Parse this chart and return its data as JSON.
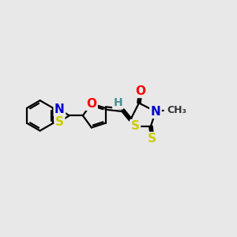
{
  "background_color": "#e8e8e8",
  "atom_colors": {
    "C": "#000000",
    "N": "#0000cc",
    "O": "#ff0000",
    "S": "#cccc00",
    "H": "#4a9090"
  },
  "bond_color": "#000000",
  "bond_width": 1.6,
  "font_size_atoms": 11,
  "font_size_me": 9,
  "font_size_h": 10
}
